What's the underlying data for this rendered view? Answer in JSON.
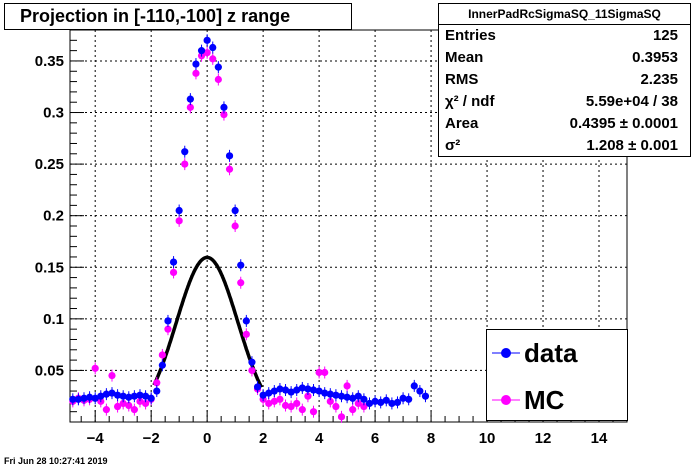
{
  "title": "Projection in [-110,-100] z range",
  "stats": {
    "name": "InnerPadRcSigmaSQ_11SigmaSQ",
    "rows": [
      {
        "label": "Entries",
        "value": "125"
      },
      {
        "label": "Mean",
        "value": "0.3953"
      },
      {
        "label": "RMS",
        "value": "2.235"
      },
      {
        "label": "χ² / ndf",
        "value": "5.59e+04 / 38"
      },
      {
        "label": "Area",
        "value": "0.4395 ± 0.0001"
      },
      {
        "label": "σ²",
        "value": "1.208 ± 0.001"
      }
    ]
  },
  "legend": [
    {
      "label": "data",
      "color": "#0000ff"
    },
    {
      "label": "MC",
      "color": "#ff00ff"
    }
  ],
  "timestamp": "Fri Jun 28 10:27:41 2019",
  "colors": {
    "data": "#0000ff",
    "mc": "#ff00ff",
    "fit": "#000000"
  },
  "chart_data": {
    "type": "scatter",
    "title": "Projection in [-110,-100] z range",
    "xlabel": "",
    "ylabel": "",
    "xlim": [
      -4.9,
      15.0
    ],
    "ylim": [
      0,
      0.38
    ],
    "grid": true,
    "legend_position": "bottom-right",
    "x_ticks": [
      -4,
      -2,
      0,
      2,
      4,
      6,
      8,
      10,
      12,
      14
    ],
    "y_ticks": [
      0.05,
      0.1,
      0.15,
      0.2,
      0.25,
      0.3,
      0.35
    ],
    "y_tick_labels": [
      "0.05",
      "0.1",
      "0.15",
      "0.2",
      "0.25",
      "0.3",
      "0.35"
    ],
    "series": [
      {
        "name": "data",
        "x": [
          -4.8,
          -4.6,
          -4.4,
          -4.2,
          -4.0,
          -3.8,
          -3.6,
          -3.4,
          -3.2,
          -3.0,
          -2.8,
          -2.6,
          -2.4,
          -2.2,
          -2.0,
          -1.8,
          -1.6,
          -1.4,
          -1.2,
          -1.0,
          -0.8,
          -0.6,
          -0.4,
          -0.2,
          0.0,
          0.2,
          0.4,
          0.6,
          0.8,
          1.0,
          1.2,
          1.4,
          1.6,
          1.8,
          2.0,
          2.2,
          2.4,
          2.6,
          2.8,
          3.0,
          3.2,
          3.4,
          3.6,
          3.8,
          4.0,
          4.2,
          4.4,
          4.6,
          4.8,
          5.0,
          5.2,
          5.4,
          5.6,
          5.8,
          6.0,
          6.2,
          6.4,
          6.6,
          6.8,
          7.0,
          7.2,
          7.4,
          7.6,
          7.8
        ],
        "y": [
          0.022,
          0.022,
          0.023,
          0.024,
          0.023,
          0.025,
          0.027,
          0.028,
          0.026,
          0.025,
          0.024,
          0.025,
          0.026,
          0.025,
          0.023,
          0.03,
          0.055,
          0.098,
          0.155,
          0.205,
          0.262,
          0.313,
          0.347,
          0.36,
          0.37,
          0.363,
          0.344,
          0.305,
          0.258,
          0.205,
          0.152,
          0.098,
          0.058,
          0.034,
          0.026,
          0.028,
          0.03,
          0.032,
          0.031,
          0.029,
          0.031,
          0.033,
          0.032,
          0.031,
          0.03,
          0.028,
          0.027,
          0.026,
          0.025,
          0.024,
          0.023,
          0.025,
          0.022,
          0.018,
          0.02,
          0.019,
          0.021,
          0.018,
          0.019,
          0.023,
          0.022,
          0.035,
          0.03,
          0.025
        ]
      },
      {
        "name": "MC",
        "x": [
          -4.8,
          -4.6,
          -4.4,
          -4.2,
          -4.0,
          -3.8,
          -3.6,
          -3.4,
          -3.2,
          -3.0,
          -2.8,
          -2.6,
          -2.4,
          -2.2,
          -2.0,
          -1.8,
          -1.6,
          -1.4,
          -1.2,
          -1.0,
          -0.8,
          -0.6,
          -0.4,
          -0.2,
          0.0,
          0.2,
          0.4,
          0.6,
          0.8,
          1.0,
          1.2,
          1.4,
          1.6,
          1.8,
          2.0,
          2.2,
          2.4,
          2.6,
          2.8,
          3.0,
          3.2,
          3.4,
          3.6,
          3.8,
          4.0,
          4.2,
          4.4,
          4.6,
          4.8,
          5.0,
          5.2,
          5.4,
          5.6
        ],
        "y": [
          0.02,
          0.023,
          0.021,
          0.022,
          0.052,
          0.02,
          0.012,
          0.045,
          0.015,
          0.018,
          0.016,
          0.012,
          0.02,
          0.018,
          0.022,
          0.038,
          0.065,
          0.09,
          0.145,
          0.195,
          0.25,
          0.305,
          0.338,
          0.355,
          0.358,
          0.352,
          0.332,
          0.298,
          0.245,
          0.19,
          0.135,
          0.085,
          0.05,
          0.032,
          0.022,
          0.018,
          0.02,
          0.022,
          0.016,
          0.015,
          0.018,
          0.012,
          0.025,
          0.01,
          0.048,
          0.048,
          0.02,
          0.015,
          0.005,
          0.035,
          0.012,
          0.018,
          0.015
        ]
      }
    ],
    "fit": {
      "name": "fit",
      "area": 0.4395,
      "sigma2": 1.208,
      "x_range": [
        -1.9,
        1.95
      ]
    }
  }
}
